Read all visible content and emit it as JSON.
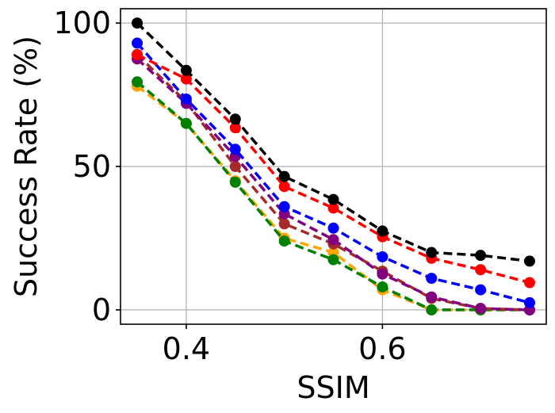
{
  "chart_data": {
    "type": "line",
    "xlabel": "SSIM",
    "ylabel": "Success Rate (%)",
    "xlim": [
      0.333,
      0.767
    ],
    "ylim": [
      -5,
      105
    ],
    "xticks": [
      0.4,
      0.6
    ],
    "yticks": [
      0,
      50,
      100
    ],
    "xtick_labels": [
      "0.4",
      "0.6"
    ],
    "ytick_labels": [
      "0",
      "50",
      "100"
    ],
    "grid": true,
    "line_style": "dashed",
    "marker": "circle",
    "x": [
      0.35,
      0.4,
      0.45,
      0.5,
      0.55,
      0.6,
      0.65,
      0.7,
      0.75
    ],
    "series": [
      {
        "color": "#ffa500",
        "values": [
          78,
          65,
          45,
          25,
          20,
          7,
          0,
          0,
          0
        ]
      },
      {
        "color": "#008000",
        "values": [
          79.5,
          65,
          44.5,
          24,
          17.5,
          8,
          0,
          0,
          0
        ]
      },
      {
        "color": "#a52a2a",
        "values": [
          89,
          72.5,
          50,
          30,
          23,
          13.5,
          4,
          0.5,
          0
        ]
      },
      {
        "color": "#800080",
        "values": [
          87.5,
          72,
          53.5,
          33.5,
          24.5,
          12.5,
          4.5,
          0.5,
          0
        ]
      },
      {
        "color": "#0000ff",
        "values": [
          93,
          73.5,
          56,
          36,
          28.5,
          18.5,
          11,
          7,
          2.5
        ]
      },
      {
        "color": "#ff0000",
        "values": [
          89,
          80.5,
          63.5,
          43,
          35.5,
          25.5,
          18,
          14,
          9.5
        ]
      },
      {
        "color": "#000000",
        "values": [
          100,
          83.5,
          66.5,
          46.5,
          38.5,
          27.5,
          20,
          19,
          17
        ]
      }
    ]
  }
}
